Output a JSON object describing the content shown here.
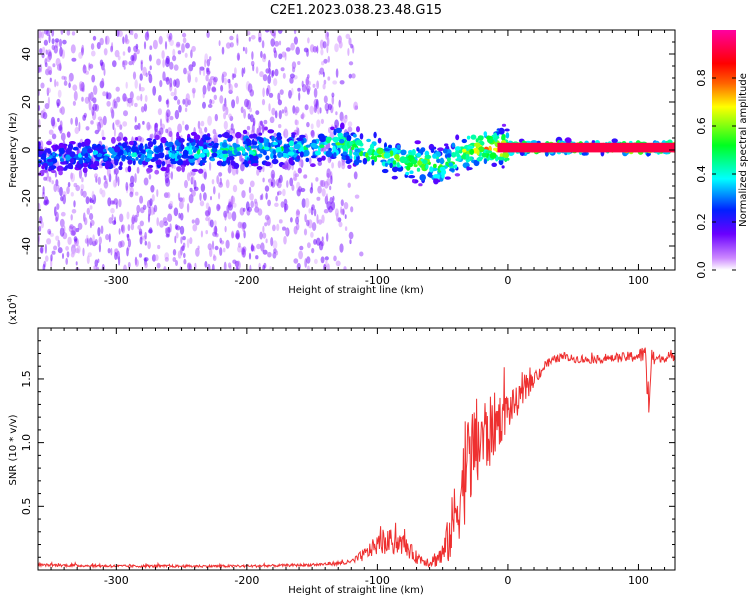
{
  "title": "C2E1.2023.038.23.48.G15",
  "chart_data": [
    {
      "type": "heatmap",
      "xlabel": "Height of straight line (km)",
      "ylabel": "Frequency (Hz)",
      "xlim": [
        -360,
        128
      ],
      "ylim": [
        -50,
        50
      ],
      "xticks": [
        -300,
        -200,
        -100,
        0,
        100
      ],
      "xtick_labels": [
        "-300",
        "-200",
        "-100",
        "0",
        "100"
      ],
      "yticks": [
        -40,
        -20,
        0,
        20,
        40
      ],
      "ytick_labels": [
        "-40",
        "-20",
        "0",
        "20",
        "40"
      ],
      "colorbar": {
        "label": "Normalized spectral amplitude",
        "range": [
          0,
          1
        ],
        "ticks": [
          0.0,
          0.2,
          0.4,
          0.6,
          0.8
        ],
        "tick_labels": [
          "0.0",
          "0.2",
          "0.4",
          "0.6",
          "0.8"
        ],
        "colors": [
          "#ffffff",
          "#cc88ff",
          "#6a00ff",
          "#0020ff",
          "#00ffff",
          "#00ff20",
          "#ffff00",
          "#ff6000",
          "#ff0000",
          "#ff00a0"
        ]
      },
      "ridge": {
        "x": [
          -360,
          -300,
          -250,
          -200,
          -150,
          -130,
          -110,
          -90,
          -75,
          -60,
          -50,
          -40,
          -30,
          -20,
          -10,
          0,
          40,
          80,
          128
        ],
        "freq": [
          -3,
          -2,
          -1,
          0,
          1,
          3,
          0,
          -3,
          -5,
          -6,
          -7,
          -3,
          0,
          1,
          1,
          1,
          1,
          1,
          1
        ],
        "amplitude": [
          0.35,
          0.38,
          0.42,
          0.5,
          0.45,
          0.55,
          0.6,
          0.62,
          0.65,
          0.62,
          0.55,
          0.6,
          0.7,
          0.75,
          0.8,
          0.85,
          0.9,
          0.85,
          0.9
        ]
      },
      "noise_region_x": [
        -360,
        -140
      ]
    },
    {
      "type": "line",
      "xlabel": "Height of straight line (km)",
      "ylabel": "SNR (10 * v/v)",
      "scale_label": "(x10^4)",
      "xlim": [
        -360,
        128
      ],
      "ylim": [
        0,
        1.9
      ],
      "xticks": [
        -300,
        -200,
        -100,
        0,
        100
      ],
      "xtick_labels": [
        "-300",
        "-200",
        "-100",
        "0",
        "100"
      ],
      "yticks": [
        0.5,
        1.0,
        1.5
      ],
      "ytick_labels": [
        "0.5",
        "1.0",
        "1.5"
      ],
      "color": "#ee3030",
      "series": [
        {
          "x": [
            -360,
            -300,
            -200,
            -150,
            -120,
            -110,
            -100,
            -90,
            -80,
            -70,
            -60,
            -50,
            -45,
            -40,
            -35,
            -30,
            -25,
            -20,
            -15,
            -10,
            -5,
            0,
            10,
            20,
            30,
            40,
            60,
            80,
            100,
            105,
            108,
            110,
            115,
            128
          ],
          "y": [
            0.04,
            0.03,
            0.03,
            0.04,
            0.06,
            0.12,
            0.2,
            0.22,
            0.2,
            0.1,
            0.06,
            0.12,
            0.25,
            0.45,
            0.65,
            0.85,
            0.95,
            1.05,
            1.05,
            1.15,
            1.2,
            1.25,
            1.35,
            1.5,
            1.62,
            1.67,
            1.65,
            1.66,
            1.68,
            1.7,
            1.3,
            1.65,
            1.66,
            1.67
          ],
          "noise_amplitude": [
            0.01,
            0.01,
            0.01,
            0.01,
            0.02,
            0.05,
            0.08,
            0.1,
            0.08,
            0.05,
            0.04,
            0.1,
            0.2,
            0.3,
            0.35,
            0.4,
            0.4,
            0.35,
            0.3,
            0.25,
            0.2,
            0.15,
            0.1,
            0.06,
            0.04,
            0.03,
            0.03,
            0.03,
            0.05,
            0.08,
            0.2,
            0.08,
            0.03,
            0.03
          ]
        }
      ]
    }
  ]
}
